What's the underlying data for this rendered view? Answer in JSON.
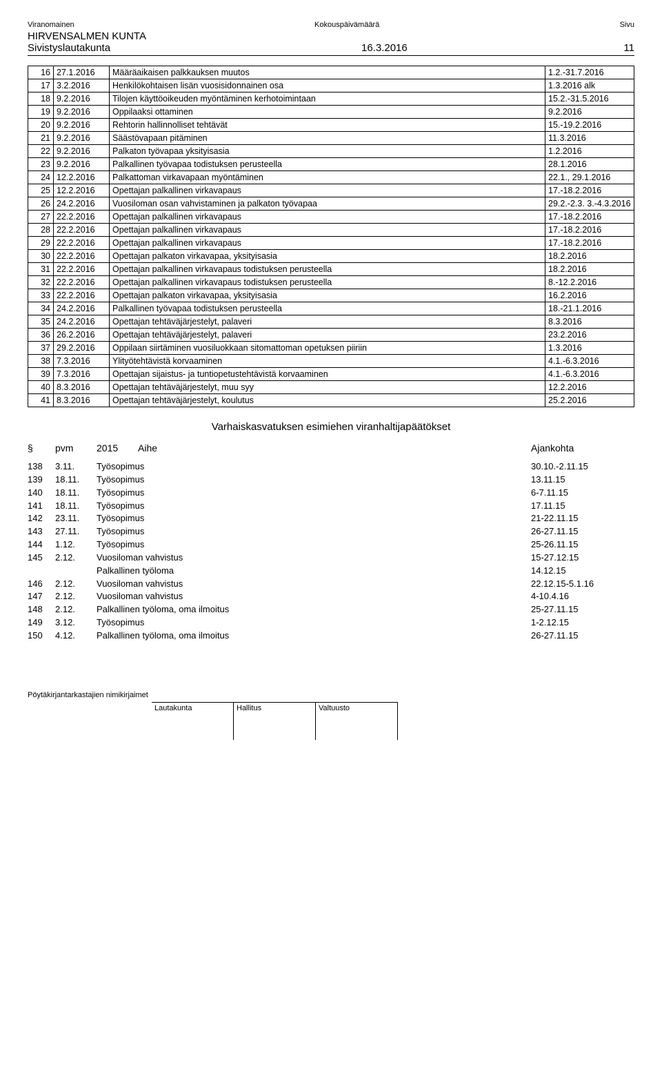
{
  "header": {
    "topLeft": "Viranomainen",
    "topMid": "Kokouspäivämäärä",
    "topRight": "Sivu",
    "org": "HIRVENSALMEN KUNTA",
    "board": "Sivistyslautakunta",
    "date": "16.3.2016",
    "page": "11"
  },
  "table1": [
    {
      "n": "16",
      "d": "27.1.2016",
      "t": "Määräaikaisen palkkauksen muutos",
      "r": "1.2.-31.7.2016"
    },
    {
      "n": "17",
      "d": "3.2.2016",
      "t": "Henkilökohtaisen lisän vuosisidonnainen osa",
      "r": "1.3.2016 alk"
    },
    {
      "n": "18",
      "d": "9.2.2016",
      "t": "Tilojen käyttöoikeuden myöntäminen kerhotoimintaan",
      "r": "15.2.-31.5.2016"
    },
    {
      "n": "19",
      "d": "9.2.2016",
      "t": "Oppilaaksi ottaminen",
      "r": "9.2.2016"
    },
    {
      "n": "20",
      "d": "9.2.2016",
      "t": "Rehtorin hallinnolliset tehtävät",
      "r": "15.-19.2.2016"
    },
    {
      "n": "21",
      "d": "9.2.2016",
      "t": "Säästövapaan pitäminen",
      "r": "11.3.2016"
    },
    {
      "n": "22",
      "d": "9.2.2016",
      "t": "Palkaton työvapaa yksityisasia",
      "r": "1.2.2016"
    },
    {
      "n": "23",
      "d": "9.2.2016",
      "t": "Palkallinen työvapaa todistuksen perusteella",
      "r": "28.1.2016"
    },
    {
      "n": "24",
      "d": "12.2.2016",
      "t": "Palkattoman virkavapaan myöntäminen",
      "r": "22.1., 29.1.2016"
    },
    {
      "n": "25",
      "d": "12.2.2016",
      "t": "Opettajan palkallinen virkavapaus",
      "r": "17.-18.2.2016"
    },
    {
      "n": "26",
      "d": "24.2.2016",
      "t": "Vuosiloman osan vahvistaminen ja palkaton työvapaa",
      "r": "29.2.-2.3. 3.-4.3.2016"
    },
    {
      "n": "27",
      "d": "22.2.2016",
      "t": "Opettajan palkallinen virkavapaus",
      "r": "17.-18.2.2016"
    },
    {
      "n": "28",
      "d": "22.2.2016",
      "t": "Opettajan palkallinen virkavapaus",
      "r": "17.-18.2.2016"
    },
    {
      "n": "29",
      "d": "22.2.2016",
      "t": "Opettajan palkallinen virkavapaus",
      "r": "17.-18.2.2016"
    },
    {
      "n": "30",
      "d": "22.2.2016",
      "t": "Opettajan palkaton virkavapaa, yksityisasia",
      "r": "18.2.2016"
    },
    {
      "n": "31",
      "d": "22.2.2016",
      "t": "Opettajan palkallinen virkavapaus todistuksen perusteella",
      "r": "18.2.2016"
    },
    {
      "n": "32",
      "d": "22.2.2016",
      "t": "Opettajan palkallinen virkavapaus todistuksen perusteella",
      "r": "8.-12.2.2016"
    },
    {
      "n": "33",
      "d": "22.2.2016",
      "t": "Opettajan palkaton virkavapaa, yksityisasia",
      "r": "16.2.2016"
    },
    {
      "n": "34",
      "d": "24.2.2016",
      "t": "Palkallinen työvapaa todistuksen perusteella",
      "r": "18.-21.1.2016"
    },
    {
      "n": "35",
      "d": "24.2.2016",
      "t": "Opettajan tehtäväjärjestelyt, palaveri",
      "r": "8.3.2016"
    },
    {
      "n": "36",
      "d": "26.2.2016",
      "t": "Opettajan tehtäväjärjestelyt, palaveri",
      "r": "23.2.2016"
    },
    {
      "n": "37",
      "d": "29.2.2016",
      "t": "Oppilaan siirtäminen vuosiluokkaan sitomattoman opetuksen piiriin",
      "r": "1.3.2016"
    },
    {
      "n": "38",
      "d": "7.3.2016",
      "t": "Ylityötehtävistä korvaaminen",
      "r": "4.1.-6.3.2016"
    },
    {
      "n": "39",
      "d": "7.3.2016",
      "t": "Opettajan sijaistus- ja tuntiopetustehtävistä korvaaminen",
      "r": "4.1.-6.3.2016"
    },
    {
      "n": "40",
      "d": "8.3.2016",
      "t": "Opettajan tehtäväjärjestelyt, muu syy",
      "r": "12.2.2016"
    },
    {
      "n": "41",
      "d": "8.3.2016",
      "t": "Opettajan tehtäväjärjestelyt, koulutus",
      "r": "25.2.2016"
    }
  ],
  "section2": {
    "title": "Varhaiskasvatuksen esimiehen viranhaltijapäätökset",
    "hdr": {
      "c1": "§",
      "c2": "pvm",
      "c3": "2015",
      "c4": "Aihe",
      "c5": "Ajankohta"
    },
    "rows": [
      {
        "n": "138",
        "d": "3.11.",
        "t": "Työsopimus",
        "r": "30.10.-2.11.15"
      },
      {
        "n": "139",
        "d": "18.11.",
        "t": "Työsopimus",
        "r": "13.11.15"
      },
      {
        "n": "140",
        "d": "18.11.",
        "t": "Työsopimus",
        "r": "6-7.11.15"
      },
      {
        "n": "141",
        "d": "18.11.",
        "t": "Työsopimus",
        "r": "17.11.15"
      },
      {
        "n": "142",
        "d": "23.11.",
        "t": "Työsopimus",
        "r": "21-22.11.15"
      },
      {
        "n": "143",
        "d": "27.11.",
        "t": "Työsopimus",
        "r": "26-27.11.15"
      },
      {
        "n": "144",
        "d": "1.12.",
        "t": "Työsopimus",
        "r": "25-26.11.15"
      },
      {
        "n": "145",
        "d": "2.12.",
        "t": "Vuosiloman vahvistus",
        "r": "15-27.12.15"
      },
      {
        "n": "",
        "d": "",
        "t": "Palkallinen työloma",
        "r": "14.12.15"
      },
      {
        "n": "146",
        "d": "2.12.",
        "t": "Vuosiloman vahvistus",
        "r": "22.12.15-5.1.16"
      },
      {
        "n": "147",
        "d": "2.12.",
        "t": "Vuosiloman vahvistus",
        "r": "4-10.4.16"
      },
      {
        "n": "148",
        "d": "2.12.",
        "t": "Palkallinen työloma, oma ilmoitus",
        "r": "25-27.11.15"
      },
      {
        "n": "149",
        "d": "3.12.",
        "t": "Työsopimus",
        "r": "1-2.12.15"
      },
      {
        "n": "150",
        "d": "4.12.",
        "t": "Palkallinen työloma, oma ilmoitus",
        "r": "26-27.11.15"
      }
    ]
  },
  "footer": {
    "label": "Pöytäkirjantarkastajien nimikirjaimet",
    "cells": [
      "Lautakunta",
      "Hallitus",
      "Valtuusto"
    ]
  }
}
